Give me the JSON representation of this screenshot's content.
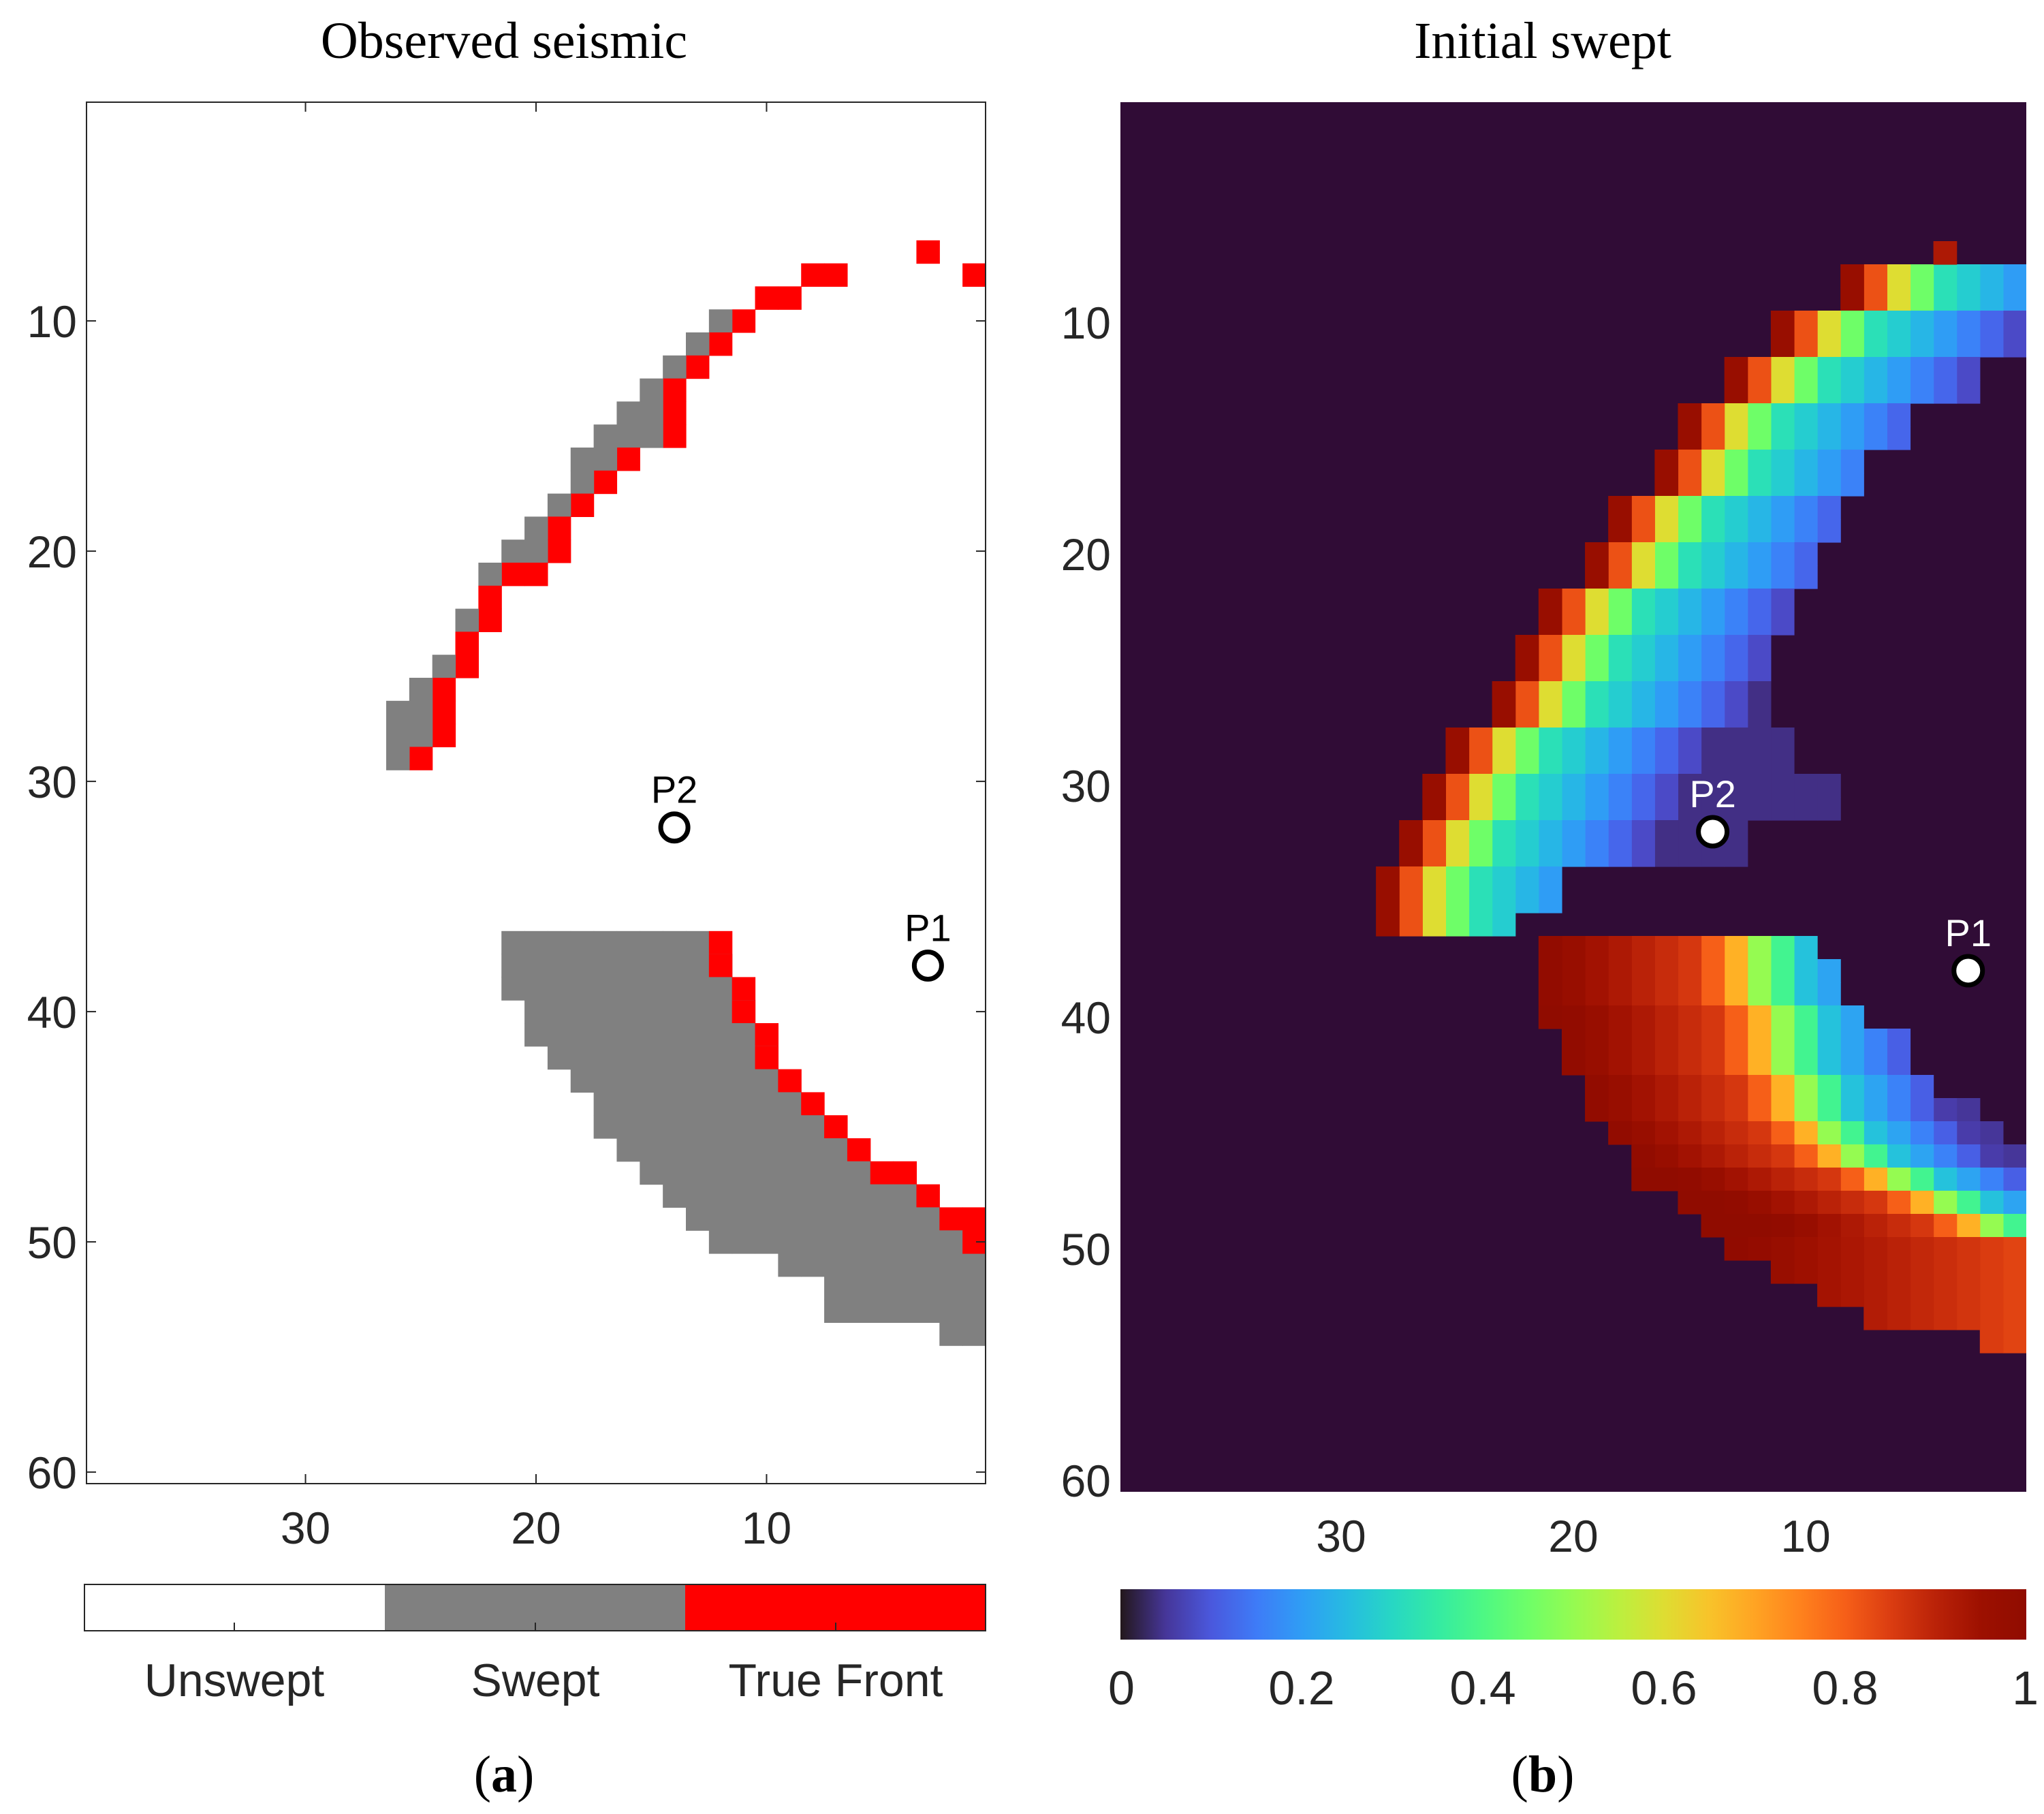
{
  "colors": {
    "unswept": "#ffffff",
    "swept": "#808080",
    "true_front": "#ff0000",
    "background_b": "#300c36",
    "axis": "#262626",
    "marker_edge": "#000000"
  },
  "chart_data": [
    {
      "panel": "a",
      "type": "heatmap",
      "title": "Observed seismic",
      "subcaption_letter": "a",
      "subcaption_open": "(",
      "subcaption_close": ")",
      "x_range": [
        39.5,
        0.5
      ],
      "x_reversed": true,
      "y_range": [
        0.5,
        60.5
      ],
      "y_reversed": true,
      "xticks": [
        30,
        20,
        10
      ],
      "yticks": [
        10,
        20,
        30,
        40,
        50,
        60
      ],
      "legend": {
        "type": "categorical",
        "categories": [
          "Unswept",
          "Swept",
          "True Front"
        ]
      },
      "category_codes": {
        "unswept": 0,
        "swept": 1,
        "true_front": 2
      },
      "cells": [
        [
          3,
          7,
          2
        ],
        [
          1,
          8,
          2
        ],
        [
          8,
          8,
          2
        ],
        [
          7,
          8,
          2
        ],
        [
          9,
          9,
          2
        ],
        [
          10,
          9,
          2
        ],
        [
          11,
          10,
          2
        ],
        [
          12,
          10,
          1
        ],
        [
          12,
          11,
          2
        ],
        [
          13,
          11,
          1
        ],
        [
          13,
          12,
          2
        ],
        [
          14,
          12,
          1
        ],
        [
          14,
          13,
          2
        ],
        [
          15,
          13,
          1
        ],
        [
          14,
          14,
          2
        ],
        [
          15,
          14,
          1
        ],
        [
          16,
          14,
          1
        ],
        [
          14,
          15,
          2
        ],
        [
          15,
          15,
          1
        ],
        [
          16,
          15,
          1
        ],
        [
          17,
          15,
          1
        ],
        [
          16,
          16,
          2
        ],
        [
          17,
          16,
          1
        ],
        [
          18,
          16,
          1
        ],
        [
          17,
          17,
          2
        ],
        [
          18,
          17,
          1
        ],
        [
          18,
          18,
          2
        ],
        [
          19,
          18,
          1
        ],
        [
          19,
          19,
          2
        ],
        [
          20,
          19,
          1
        ],
        [
          19,
          20,
          2
        ],
        [
          20,
          20,
          1
        ],
        [
          21,
          20,
          1
        ],
        [
          20,
          21,
          2
        ],
        [
          21,
          21,
          2
        ],
        [
          22,
          21,
          1
        ],
        [
          22,
          22,
          2
        ],
        [
          22,
          23,
          2
        ],
        [
          23,
          23,
          1
        ],
        [
          23,
          24,
          2
        ],
        [
          23,
          25,
          2
        ],
        [
          24,
          25,
          1
        ],
        [
          24,
          26,
          2
        ],
        [
          25,
          26,
          1
        ],
        [
          24,
          27,
          2
        ],
        [
          25,
          27,
          1
        ],
        [
          26,
          27,
          1
        ],
        [
          24,
          28,
          2
        ],
        [
          25,
          28,
          1
        ],
        [
          26,
          28,
          1
        ],
        [
          25,
          29,
          2
        ],
        [
          26,
          29,
          1
        ]
      ],
      "bands": [
        {
          "row": 37,
          "swept_from": 13,
          "swept_to": 21,
          "front": [
            12
          ]
        },
        {
          "row": 38,
          "swept_from": 12,
          "swept_to": 21,
          "front": [
            12
          ]
        },
        {
          "row": 39,
          "swept_from": 12,
          "swept_to": 21,
          "front": [
            11
          ]
        },
        {
          "row": 40,
          "swept_from": 11,
          "swept_to": 20,
          "front": [
            11
          ]
        },
        {
          "row": 41,
          "swept_from": 11,
          "swept_to": 20,
          "front": [
            10
          ]
        },
        {
          "row": 42,
          "swept_from": 10,
          "swept_to": 19,
          "front": [
            10
          ]
        },
        {
          "row": 43,
          "swept_from": 10,
          "swept_to": 18,
          "front": [
            9
          ]
        },
        {
          "row": 44,
          "swept_from": 9,
          "swept_to": 17,
          "front": [
            8
          ]
        },
        {
          "row": 45,
          "swept_from": 8,
          "swept_to": 17,
          "front": [
            7
          ]
        },
        {
          "row": 46,
          "swept_from": 7,
          "swept_to": 16,
          "front": [
            6
          ]
        },
        {
          "row": 47,
          "swept_from": 6,
          "swept_to": 15,
          "front": [
            4,
            5
          ]
        },
        {
          "row": 48,
          "swept_from": 4,
          "swept_to": 14,
          "front": [
            3
          ]
        },
        {
          "row": 49,
          "swept_from": 3,
          "swept_to": 13,
          "front": [
            1,
            2
          ]
        },
        {
          "row": 50,
          "swept_from": 2,
          "swept_to": 12,
          "front": []
        },
        {
          "row": 51,
          "swept_from": 1,
          "swept_to": 9,
          "front": []
        },
        {
          "row": 52,
          "swept_from": 1,
          "swept_to": 7,
          "front": []
        },
        {
          "row": 53,
          "swept_from": 1,
          "swept_to": 7,
          "front": []
        },
        {
          "row": 54,
          "swept_from": 1,
          "swept_to": 2,
          "front": []
        }
      ],
      "extra_cells": [
        [
          1,
          50,
          2
        ]
      ],
      "points": [
        {
          "label": "P2",
          "x": 14,
          "y": 32
        },
        {
          "label": "P1",
          "x": 3,
          "y": 38
        }
      ]
    },
    {
      "panel": "b",
      "type": "heatmap",
      "title": "Initial swept",
      "subcaption_letter": "b",
      "subcaption_open": "(",
      "subcaption_close": ")",
      "x_range": [
        39.5,
        0.5
      ],
      "x_reversed": true,
      "y_range": [
        0.5,
        60.5
      ],
      "y_reversed": true,
      "xticks": [
        30,
        20,
        10
      ],
      "yticks": [
        10,
        20,
        30,
        40,
        50,
        60
      ],
      "colorbar": {
        "min": 0,
        "max": 1,
        "ticks": [
          0,
          0.2,
          0.4,
          0.6,
          0.8,
          1
        ],
        "tick_labels": [
          "0",
          "0.2",
          "0.4",
          "0.6",
          "0.8",
          "1"
        ],
        "colormap": "turbo"
      },
      "upper_arc": [
        {
          "rows": [
            8,
            9
          ],
          "cols": [
            1,
            8
          ],
          "edge": 8,
          "width": 7
        },
        {
          "rows": [
            10,
            11
          ],
          "cols": [
            1,
            11
          ],
          "edge": 11,
          "width": 9
        },
        {
          "rows": [
            12,
            13
          ],
          "cols": [
            3,
            13
          ],
          "edge": 13,
          "width": 9
        },
        {
          "rows": [
            14,
            15
          ],
          "cols": [
            6,
            15
          ],
          "edge": 15,
          "width": 9
        },
        {
          "rows": [
            16,
            17
          ],
          "cols": [
            8,
            16
          ],
          "edge": 16,
          "width": 9
        },
        {
          "rows": [
            18,
            19
          ],
          "cols": [
            9,
            18
          ],
          "edge": 18,
          "width": 9
        },
        {
          "rows": [
            20,
            21
          ],
          "cols": [
            10,
            19
          ],
          "edge": 19,
          "width": 9
        },
        {
          "rows": [
            22,
            23
          ],
          "cols": [
            11,
            21
          ],
          "edge": 21,
          "width": 10
        },
        {
          "rows": [
            24,
            25
          ],
          "cols": [
            12,
            22
          ],
          "edge": 22,
          "width": 10
        },
        {
          "rows": [
            26,
            27
          ],
          "cols": [
            12,
            23
          ],
          "edge": 23,
          "width": 11
        },
        {
          "rows": [
            28,
            29
          ],
          "cols": [
            11,
            25
          ],
          "edge": 25,
          "width": 12
        },
        {
          "rows": [
            30,
            31
          ],
          "cols": [
            9,
            26
          ],
          "edge": 26,
          "width": 13
        },
        {
          "rows": [
            32,
            33
          ],
          "cols": [
            13,
            27
          ],
          "edge": 27,
          "width": 13
        },
        {
          "rows": [
            34,
            35
          ],
          "cols": [
            21,
            28
          ],
          "edge": 28,
          "width": 8
        },
        {
          "rows": [
            36,
            36
          ],
          "cols": [
            23,
            28
          ],
          "edge": 28,
          "width": 6
        }
      ],
      "lower_arc": [
        {
          "row": 37,
          "from": 10,
          "to": 21,
          "front": 12
        },
        {
          "row": 38,
          "from": 9,
          "to": 21,
          "front": 12
        },
        {
          "row": 39,
          "from": 9,
          "to": 21,
          "front": 12
        },
        {
          "row": 40,
          "from": 8,
          "to": 21,
          "front": 11
        },
        {
          "row": 41,
          "from": 6,
          "to": 20,
          "front": 11
        },
        {
          "row": 42,
          "from": 6,
          "to": 20,
          "front": 11
        },
        {
          "row": 43,
          "from": 5,
          "to": 19,
          "front": 10
        },
        {
          "row": 44,
          "from": 3,
          "to": 19,
          "front": 10
        },
        {
          "row": 45,
          "from": 2,
          "to": 18,
          "front": 9
        },
        {
          "row": 46,
          "from": 1,
          "to": 17,
          "front": 8
        },
        {
          "row": 47,
          "from": 1,
          "to": 17,
          "front": 6
        },
        {
          "row": 48,
          "from": 1,
          "to": 15,
          "front": 4
        },
        {
          "row": 49,
          "from": 1,
          "to": 14,
          "front": 2
        },
        {
          "row": 50,
          "from": 1,
          "to": 13,
          "front": 0
        },
        {
          "row": 51,
          "from": 1,
          "to": 11,
          "front": 0
        },
        {
          "row": 52,
          "from": 1,
          "to": 9,
          "front": 0
        },
        {
          "row": 53,
          "from": 1,
          "to": 7,
          "front": 0
        },
        {
          "row": 54,
          "from": 1,
          "to": 2,
          "front": 0
        }
      ],
      "points": [
        {
          "label": "P2",
          "x": 14,
          "y": 32
        },
        {
          "label": "P1",
          "x": 3,
          "y": 38
        }
      ]
    }
  ]
}
